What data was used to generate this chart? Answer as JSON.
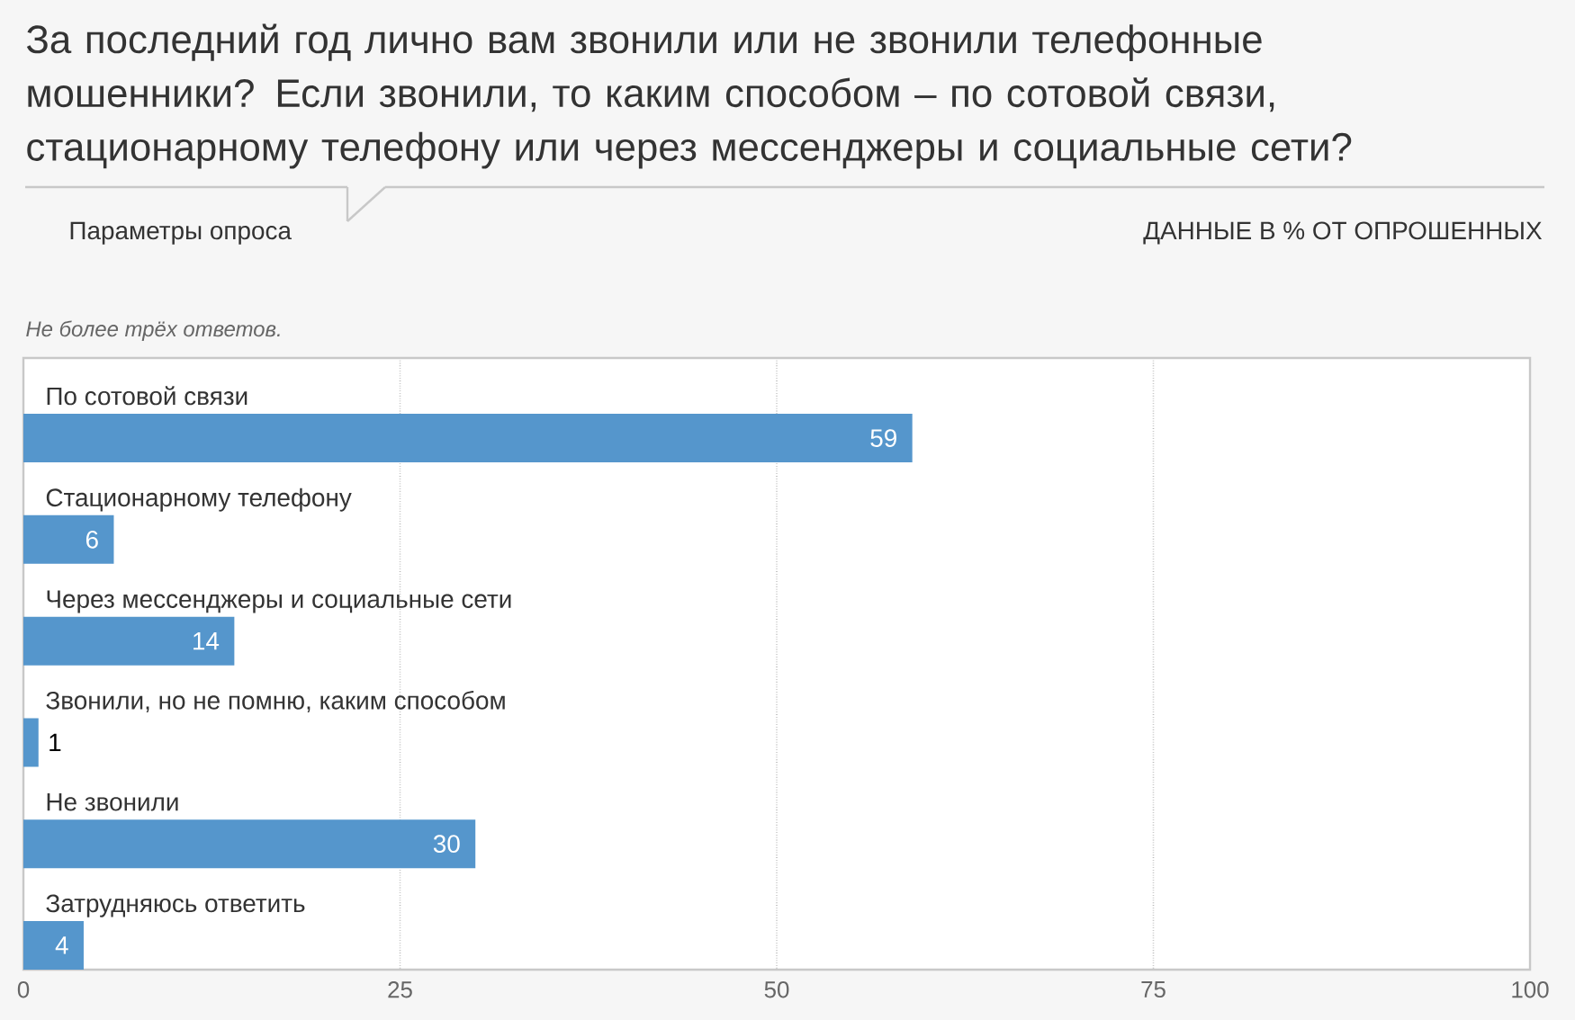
{
  "chart_data": {
    "type": "bar",
    "orientation": "horizontal",
    "title": "За последний год лично вам звонили или не звонили телефонные мошенники? Если звонили, то каким способом – по сотовой связи, стационарному телефону или через мессенджеры и социальные сети?",
    "subtitle": "ДАННЫЕ В % ОТ ОПРОШЕННЫХ",
    "annotations": [
      "Параметры опроса",
      "Не более трёх ответов."
    ],
    "categories": [
      "По сотовой связи",
      "Стационарному телефону",
      "Через мессенджеры и социальные сети",
      "Звонили, но не помню, каким способом",
      "Не звонили",
      "Затрудняюсь ответить"
    ],
    "values": [
      59,
      6,
      14,
      1,
      30,
      4
    ],
    "color": "#5596cc",
    "xlim": [
      0,
      100
    ],
    "xticks": [
      0,
      25,
      50,
      75,
      100
    ],
    "grid": "x",
    "data_labels": true
  }
}
